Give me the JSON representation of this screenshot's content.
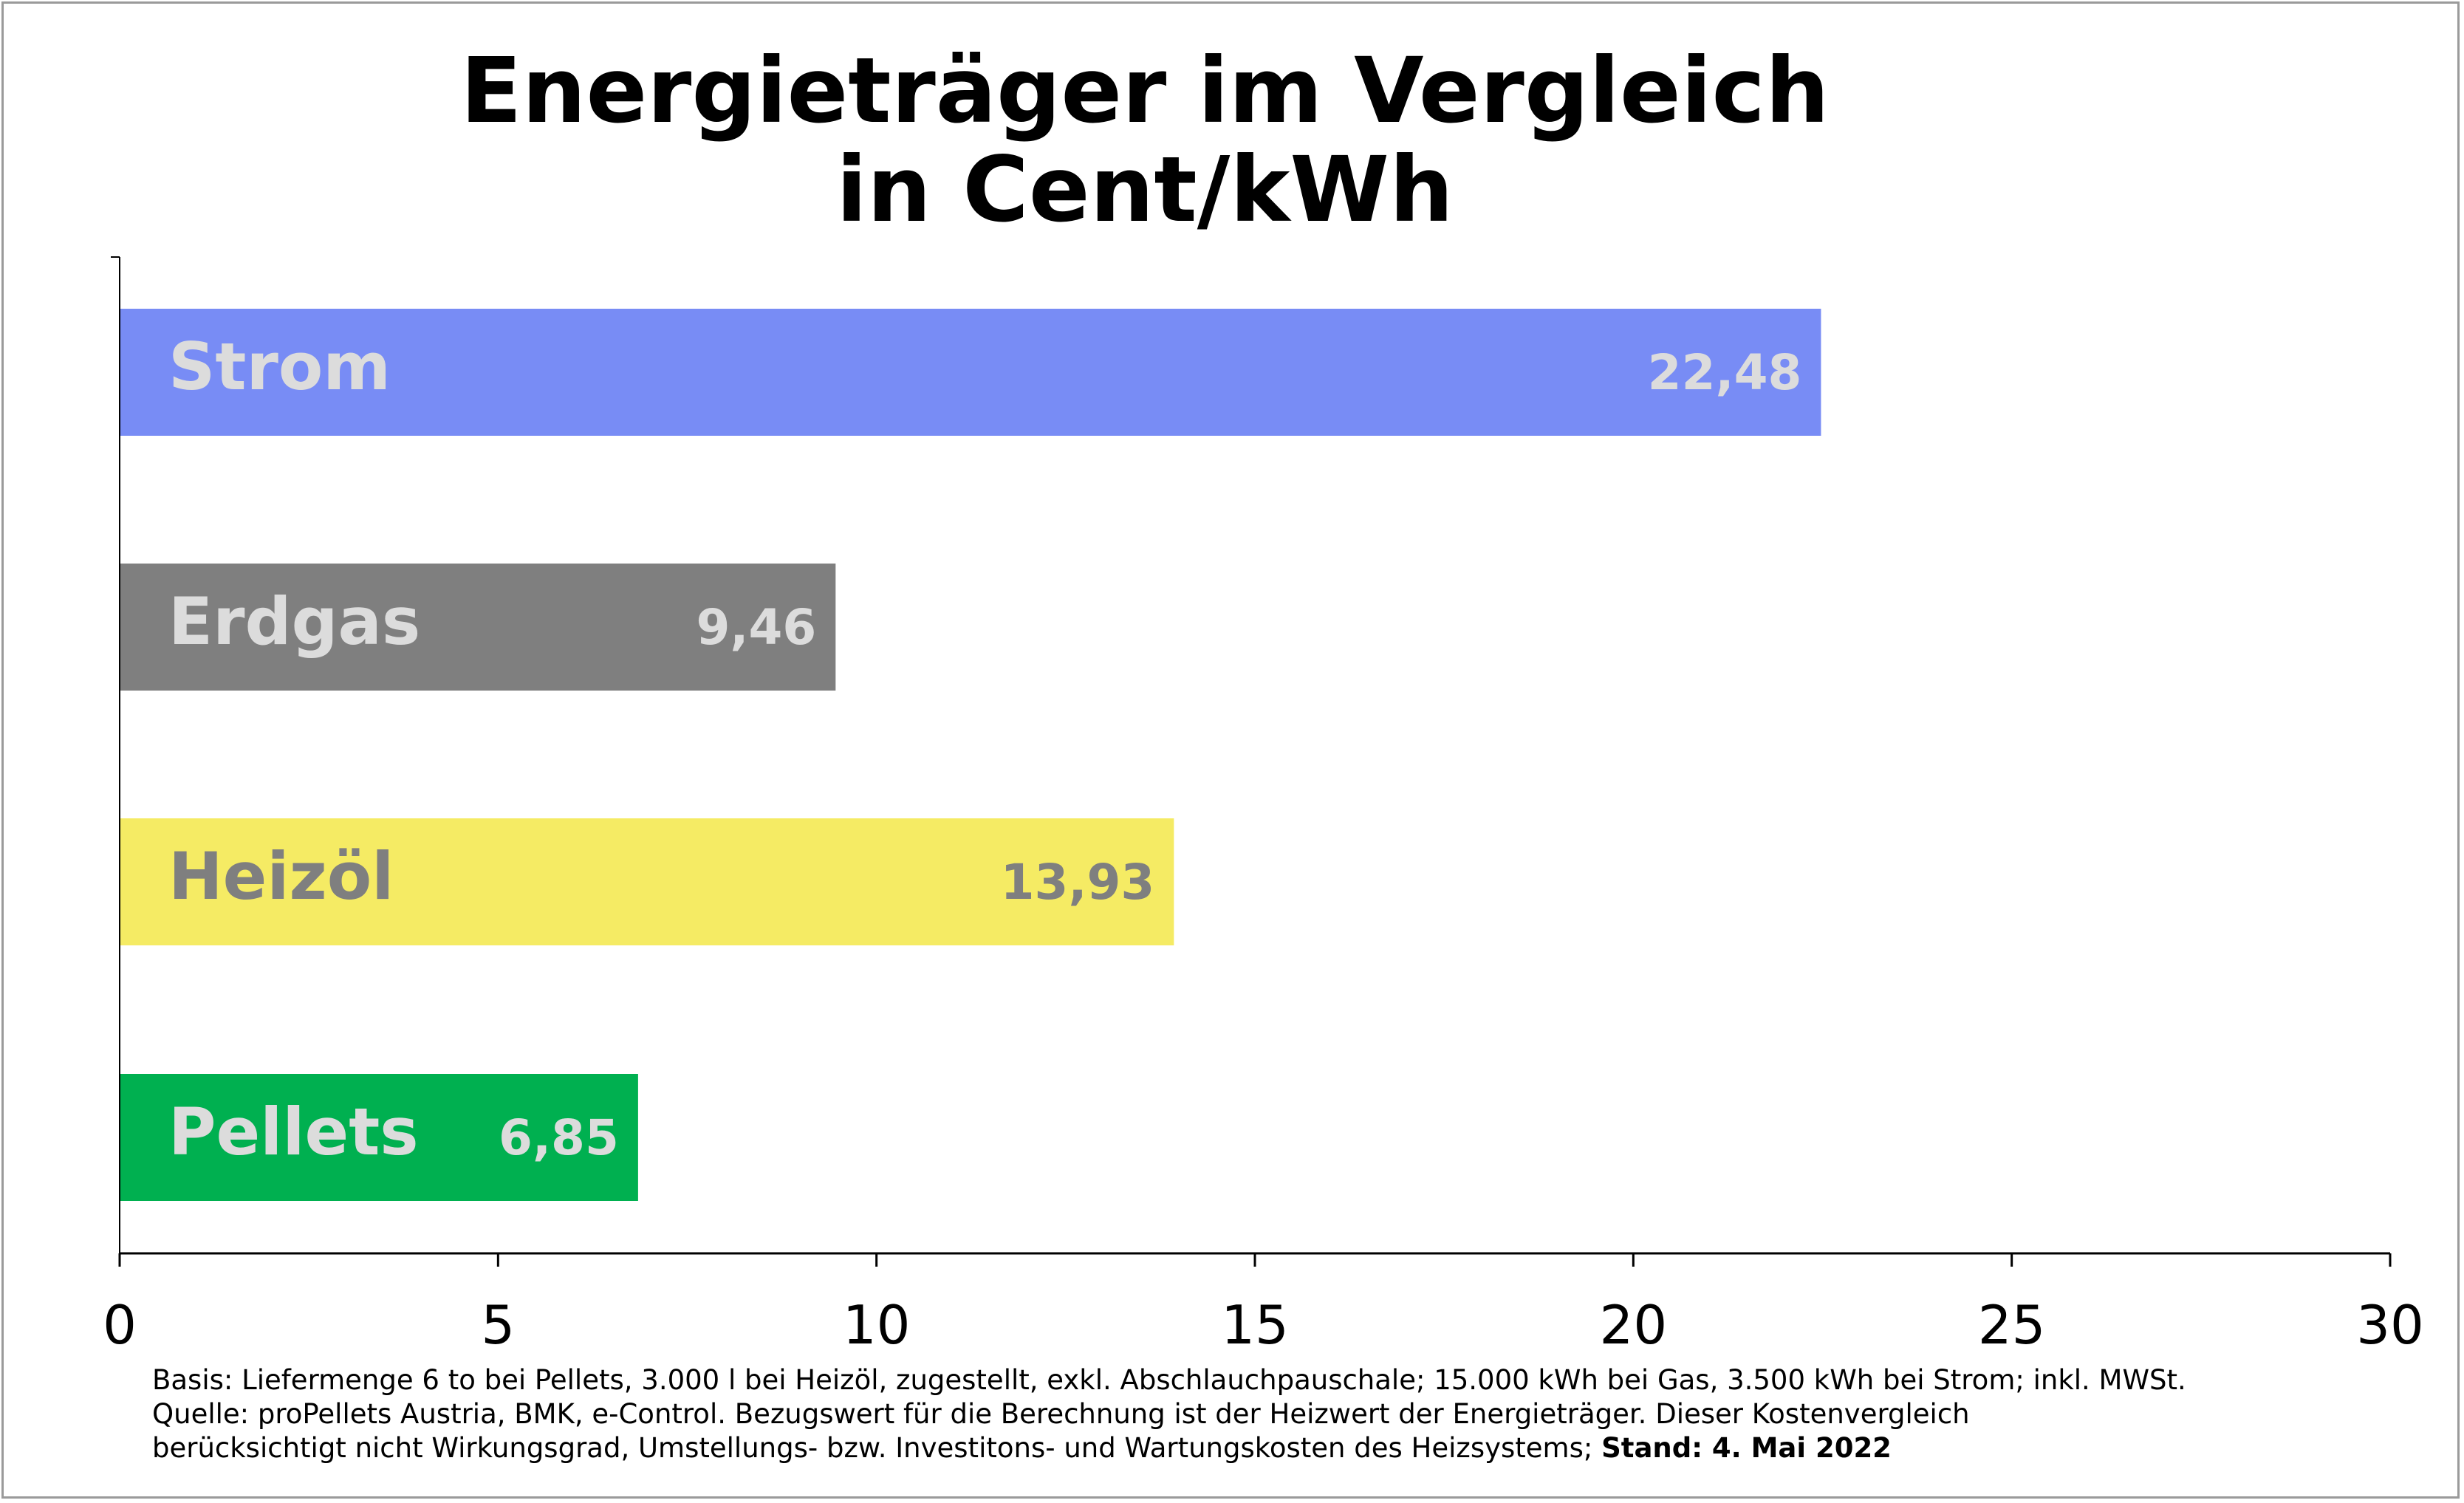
{
  "title": {
    "line1": "Energieträger im Vergleich",
    "line2": "in Cent/kWh"
  },
  "chart_data": {
    "type": "bar",
    "orientation": "horizontal",
    "title": "Energieträger im Vergleich in Cent/kWh",
    "categories": [
      "Strom",
      "Erdgas",
      "Heizöl",
      "Pellets"
    ],
    "values": [
      22.48,
      9.46,
      13.93,
      6.85
    ],
    "value_labels": [
      "22,48",
      "9,46",
      "13,93",
      "6,85"
    ],
    "bar_colors": [
      "#788cf5",
      "#7f7f7f",
      "#f5eb64",
      "#00b050"
    ],
    "label_colors": [
      "#dcdcdc",
      "#dcdcdc",
      "#7f7f7f",
      "#dcdcdc"
    ],
    "xlim": [
      0,
      30
    ],
    "xticks": [
      0,
      5,
      10,
      15,
      20,
      25,
      30
    ],
    "xtick_labels": [
      "0",
      "5",
      "10",
      "15",
      "20",
      "25",
      "30"
    ],
    "xlabel": "",
    "ylabel": "",
    "grid": false,
    "legend": "none"
  },
  "footnote": {
    "line1": "Basis: Liefermenge 6 to bei Pellets, 3.000 l bei Heizöl, zugestellt, exkl. Abschlauchpauschale; 15.000 kWh bei Gas, 3.500 kWh bei Strom; inkl. MWSt.",
    "line2": "Quelle: proPellets Austria, BMK, e-Control. Bezugswert für die Berechnung ist der Heizwert der Energieträger. Dieser Kostenvergleich",
    "line3": "berücksichtigt nicht Wirkungsgrad, Umstellungs- bzw. Investitons- und Wartungskosten des Heizsystems; ",
    "stand": "Stand: 4. Mai 2022"
  }
}
